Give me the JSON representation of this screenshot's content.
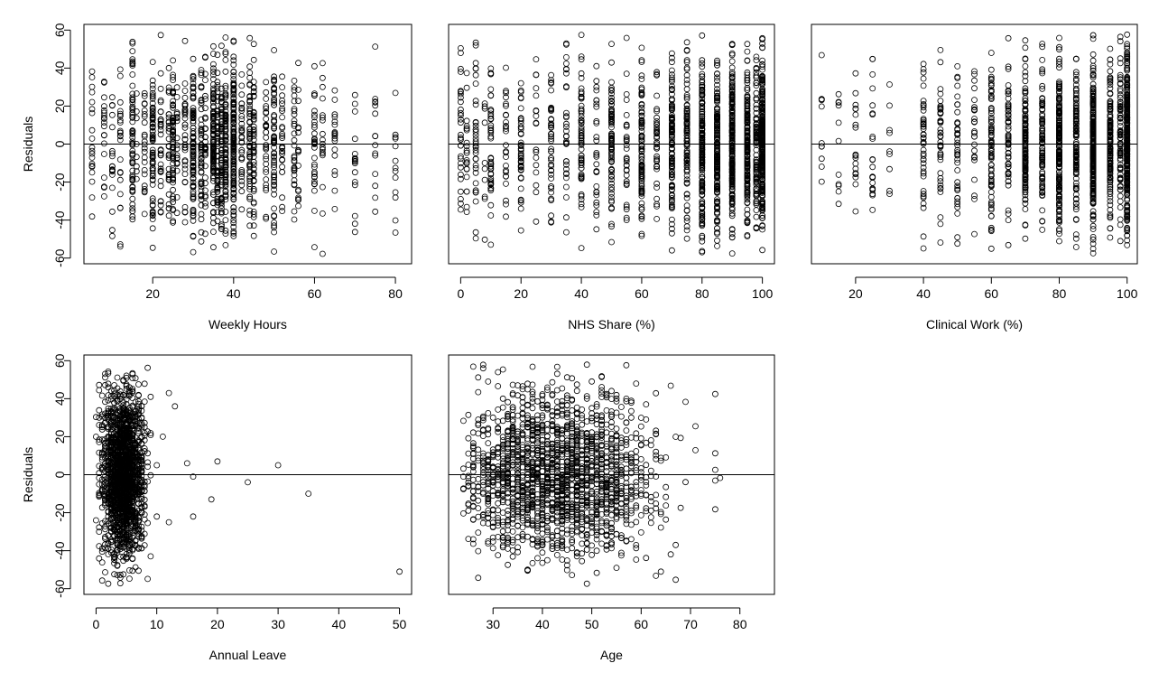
{
  "chart_data": [
    {
      "type": "scatter",
      "xlabel": "Weekly Hours",
      "ylabel": "Residuals",
      "xlim": [
        3,
        84
      ],
      "ylim": [
        -63,
        63
      ],
      "xticks": [
        20,
        40,
        60,
        80
      ],
      "yticks": [
        -60,
        -40,
        -20,
        0,
        20,
        40,
        60
      ],
      "reference_line_y": 0,
      "x_distribution": {
        "kind": "discrete",
        "values": [
          5,
          8,
          10,
          12,
          15,
          16,
          18,
          20,
          22,
          24,
          25,
          26,
          28,
          30,
          32,
          33,
          35,
          36,
          37,
          38,
          40,
          42,
          44,
          45,
          48,
          50,
          52,
          55,
          56,
          60,
          62,
          65,
          70,
          75,
          80
        ],
        "weights": [
          1,
          1,
          2,
          2,
          3,
          1,
          1,
          4,
          2,
          2,
          4,
          1,
          2,
          6,
          3,
          2,
          7,
          3,
          4,
          5,
          8,
          2,
          3,
          4,
          2,
          4,
          1,
          2,
          1,
          2,
          1,
          1,
          1,
          1,
          1
        ]
      },
      "n_points": 1500
    },
    {
      "type": "scatter",
      "xlabel": "NHS Share (%)",
      "ylabel": "",
      "xlim": [
        -4,
        104
      ],
      "ylim": [
        -63,
        63
      ],
      "xticks": [
        0,
        20,
        40,
        60,
        80,
        100
      ],
      "yticks": [],
      "reference_line_y": 0,
      "x_distribution": {
        "kind": "discrete",
        "values": [
          0,
          2,
          5,
          8,
          10,
          15,
          20,
          25,
          30,
          35,
          40,
          45,
          50,
          55,
          60,
          65,
          70,
          75,
          80,
          85,
          90,
          95,
          98,
          100
        ],
        "weights": [
          2,
          1,
          2,
          1,
          3,
          2,
          3,
          2,
          3,
          2,
          4,
          2,
          5,
          2,
          6,
          3,
          8,
          7,
          12,
          9,
          14,
          12,
          6,
          20
        ]
      },
      "n_points": 1900
    },
    {
      "type": "scatter",
      "xlabel": "Clinical Work (%)",
      "ylabel": "",
      "xlim": [
        7,
        103
      ],
      "ylim": [
        -63,
        63
      ],
      "xticks": [
        20,
        40,
        60,
        80,
        100
      ],
      "yticks": [],
      "reference_line_y": 0,
      "x_distribution": {
        "kind": "discrete",
        "values": [
          10,
          15,
          20,
          25,
          30,
          40,
          45,
          50,
          55,
          60,
          65,
          70,
          75,
          80,
          85,
          90,
          95,
          98,
          100
        ],
        "weights": [
          1,
          1,
          1,
          1,
          1,
          2,
          2,
          3,
          2,
          5,
          4,
          9,
          7,
          14,
          8,
          16,
          10,
          6,
          22
        ]
      },
      "n_points": 1700
    },
    {
      "type": "scatter",
      "xlabel": "Annual Leave",
      "ylabel": "Residuals",
      "xlim": [
        -2,
        52
      ],
      "ylim": [
        -63,
        63
      ],
      "xticks": [
        0,
        10,
        20,
        30,
        40,
        50
      ],
      "yticks": [
        -60,
        -40,
        -20,
        0,
        20,
        40,
        60
      ],
      "reference_line_y": 0,
      "x_distribution": {
        "kind": "continuous",
        "center": 4.5,
        "spread": 1.7,
        "min": 0,
        "max": 9
      },
      "x_outliers": [
        [
          10,
          5
        ],
        [
          10,
          -22
        ],
        [
          11,
          20
        ],
        [
          12,
          -25
        ],
        [
          12,
          43
        ],
        [
          13,
          36
        ],
        [
          15,
          6
        ],
        [
          16,
          -1
        ],
        [
          16,
          -22
        ],
        [
          19,
          -13
        ],
        [
          20,
          7
        ],
        [
          25,
          -4
        ],
        [
          30,
          5
        ],
        [
          35,
          -10
        ],
        [
          50,
          -51
        ]
      ],
      "n_points": 1800
    },
    {
      "type": "scatter",
      "xlabel": "Age",
      "ylabel": "",
      "xlim": [
        21,
        87
      ],
      "ylim": [
        -63,
        63
      ],
      "xticks": [
        30,
        40,
        50,
        60,
        70,
        80
      ],
      "yticks": [],
      "reference_line_y": 0,
      "x_distribution": {
        "kind": "continuous",
        "center": 43,
        "spread": 10,
        "min": 24,
        "max": 84
      },
      "n_points": 1800
    }
  ]
}
